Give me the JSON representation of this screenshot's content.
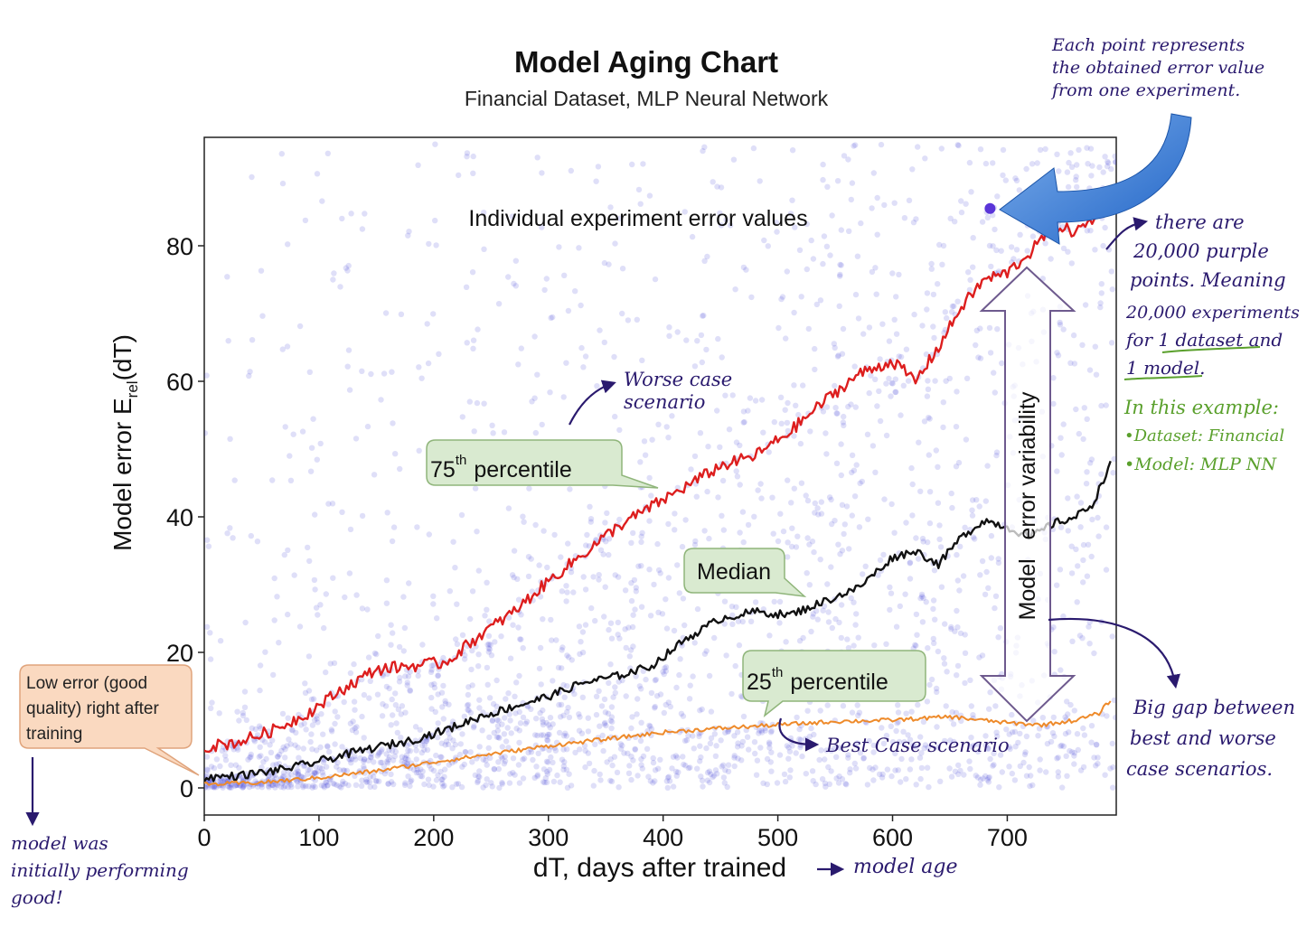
{
  "chart_data": {
    "type": "scatter",
    "title": "Model Aging Chart",
    "subtitle": "Financial Dataset, MLP Neural Network",
    "xlabel": "dT, days after trained",
    "ylabel_main": "Model error E",
    "ylabel_sub": "rel",
    "ylabel_tail": "(dT)",
    "xlim": [
      0,
      795
    ],
    "ylim": [
      -4,
      96
    ],
    "xticks": [
      0,
      100,
      200,
      300,
      400,
      500,
      600,
      700
    ],
    "yticks": [
      0,
      20,
      40,
      60,
      80
    ],
    "grid": false,
    "scatter_label": "Individual experiment error values",
    "scatter_color": "#3b3bd6",
    "highlight_point": {
      "x": 685,
      "y": 85.5,
      "color": "#5a35d8"
    },
    "series": [
      {
        "name": "75th percentile",
        "color": "#dd1e1e",
        "x": [
          0,
          30,
          60,
          90,
          120,
          150,
          180,
          210,
          240,
          270,
          300,
          330,
          360,
          390,
          420,
          450,
          480,
          510,
          540,
          570,
          600,
          620,
          640,
          660,
          680,
          700,
          720,
          740,
          760,
          775,
          790
        ],
        "values": [
          6,
          6.8,
          8.5,
          11,
          14.5,
          17.5,
          18,
          18.5,
          22.5,
          26,
          30.5,
          34.5,
          38.5,
          41.5,
          44.5,
          47.5,
          49,
          52.5,
          57,
          61,
          63,
          60,
          65,
          71,
          75,
          76,
          79,
          83,
          82,
          84,
          86
        ]
      },
      {
        "name": "Median",
        "color": "#111111",
        "x": [
          0,
          30,
          60,
          90,
          120,
          150,
          180,
          210,
          240,
          270,
          300,
          330,
          360,
          390,
          420,
          450,
          480,
          510,
          540,
          570,
          600,
          620,
          640,
          660,
          680,
          700,
          720,
          740,
          760,
          775,
          790
        ],
        "values": [
          1.5,
          1.8,
          2.5,
          3.5,
          4.8,
          6,
          7,
          8.5,
          10.5,
          12,
          13.5,
          15.5,
          16.5,
          18,
          22,
          25,
          26,
          25.5,
          27.5,
          29.5,
          34,
          35,
          33,
          37,
          39.5,
          38.5,
          37,
          39,
          40,
          42,
          48
        ]
      },
      {
        "name": "25th percentile",
        "color": "#ee8a2a",
        "x": [
          0,
          50,
          100,
          150,
          200,
          250,
          300,
          350,
          400,
          450,
          500,
          550,
          600,
          650,
          700,
          730,
          760,
          780,
          790
        ],
        "values": [
          0.5,
          0.8,
          1.5,
          2.5,
          3.8,
          5,
          6.2,
          7.2,
          8.2,
          8.8,
          9.3,
          9.8,
          10,
          10.5,
          9.6,
          9.3,
          10,
          11,
          13
        ]
      }
    ]
  },
  "callouts": {
    "p75": {
      "label": "75",
      "sup": "th",
      "tail": "percentile"
    },
    "median": {
      "label": "Median"
    },
    "p25": {
      "label": "25",
      "sup": "th",
      "tail": "percentile"
    },
    "low_error": {
      "line1": "Low error (good",
      "line2": "quality) right after",
      "line3": "training"
    }
  },
  "variability": {
    "label": "Model   error variability"
  },
  "annotations": {
    "top_note": {
      "line1": "Each point represents",
      "line2": "the obtained error value",
      "line3": "from one experiment."
    },
    "worse_case": {
      "line1": "Worse case",
      "line2": "scenario"
    },
    "best_case": "Best Case scenario",
    "purple_points": {
      "line1": "there are",
      "line2": "20,000 purple",
      "line3": "points. Meaning",
      "line4": "20,000 experiments",
      "line5": "for 1 dataset and",
      "line6": "1 model."
    },
    "example": {
      "line1": "In this example:",
      "line2": "•Dataset: Financial",
      "line3": "•Model: MLP NN"
    },
    "big_gap": {
      "line1": "Big gap between",
      "line2": "best and worse",
      "line3": "case scenarios."
    },
    "initial": {
      "line1": "model was",
      "line2": "initially performing",
      "line3": "good!"
    },
    "model_age": "model age"
  }
}
